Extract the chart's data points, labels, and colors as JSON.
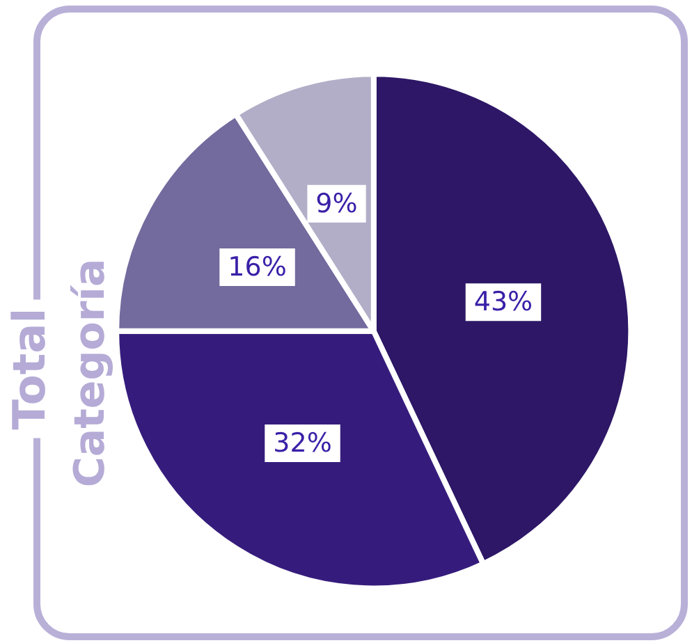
{
  "chart_data": {
    "type": "pie",
    "title": "Total",
    "subtitle": "Categoría",
    "categories": [
      null,
      null,
      null,
      null
    ],
    "values": [
      43,
      32,
      16,
      9
    ],
    "value_labels": [
      "43%",
      "32%",
      "16%",
      "9%"
    ],
    "colors": [
      "#2d1766",
      "#351c7c",
      "#736a9e",
      "#b2aec8"
    ]
  }
}
